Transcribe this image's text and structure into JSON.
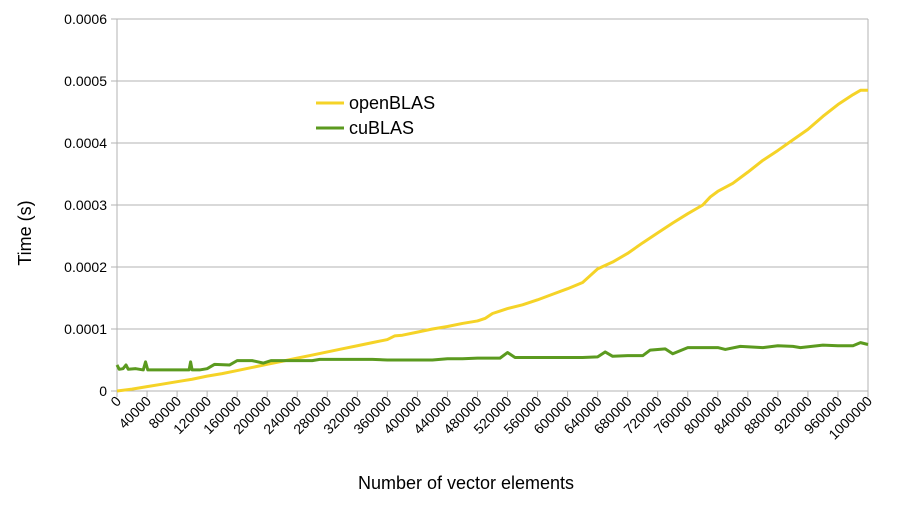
{
  "chart_data": {
    "type": "line",
    "title": "",
    "xlabel": "Number of vector elements",
    "ylabel": "Time (s)",
    "xlim": [
      0,
      1000000
    ],
    "ylim": [
      0,
      0.0006
    ],
    "x_ticks": [
      0,
      40000,
      80000,
      120000,
      160000,
      200000,
      240000,
      280000,
      320000,
      360000,
      400000,
      440000,
      480000,
      520000,
      560000,
      600000,
      640000,
      680000,
      720000,
      760000,
      800000,
      840000,
      880000,
      920000,
      960000,
      1000000
    ],
    "x_tick_labels": [
      "0",
      "40000",
      "80000",
      "120000",
      "160000",
      "200000",
      "240000",
      "280000",
      "320000",
      "360000",
      "400000",
      "440000",
      "480000",
      "520000",
      "560000",
      "600000",
      "640000",
      "680000",
      "720000",
      "760000",
      "800000",
      "840000",
      "880000",
      "920000",
      "960000",
      "1000000"
    ],
    "y_ticks": [
      0,
      0.0001,
      0.0002,
      0.0003,
      0.0004,
      0.0005,
      0.0006
    ],
    "y_tick_labels": [
      "0",
      "0.0001",
      "0.0002",
      "0.0003",
      "0.0004",
      "0.0005",
      "0.0006"
    ],
    "grid": "horizontal",
    "legend_position": "upper-left-inside",
    "series": [
      {
        "name": "openBLAS",
        "color": "#f5d327",
        "points": [
          [
            0,
            0.0
          ],
          [
            20000,
            3e-06
          ],
          [
            40000,
            7e-06
          ],
          [
            60000,
            1.1e-05
          ],
          [
            80000,
            1.5e-05
          ],
          [
            100000,
            1.9e-05
          ],
          [
            120000,
            2.4e-05
          ],
          [
            140000,
            2.8e-05
          ],
          [
            160000,
            3.3e-05
          ],
          [
            180000,
            3.8e-05
          ],
          [
            200000,
            4.3e-05
          ],
          [
            220000,
            4.8e-05
          ],
          [
            240000,
            5.3e-05
          ],
          [
            260000,
            5.8e-05
          ],
          [
            280000,
            6.3e-05
          ],
          [
            300000,
            6.8e-05
          ],
          [
            320000,
            7.3e-05
          ],
          [
            340000,
            7.8e-05
          ],
          [
            360000,
            8.3e-05
          ],
          [
            370000,
            8.9e-05
          ],
          [
            380000,
            9e-05
          ],
          [
            400000,
            9.5e-05
          ],
          [
            420000,
            0.0001
          ],
          [
            440000,
            0.000104
          ],
          [
            460000,
            0.000109
          ],
          [
            480000,
            0.000113
          ],
          [
            490000,
            0.000117
          ],
          [
            500000,
            0.000125
          ],
          [
            510000,
            0.000129
          ],
          [
            520000,
            0.000133
          ],
          [
            540000,
            0.000139
          ],
          [
            560000,
            0.000147
          ],
          [
            580000,
            0.000156
          ],
          [
            600000,
            0.000165
          ],
          [
            620000,
            0.000175
          ],
          [
            630000,
            0.000186
          ],
          [
            640000,
            0.000197
          ],
          [
            660000,
            0.000208
          ],
          [
            680000,
            0.000222
          ],
          [
            700000,
            0.000239
          ],
          [
            720000,
            0.000255
          ],
          [
            740000,
            0.000271
          ],
          [
            760000,
            0.000286
          ],
          [
            780000,
            0.0003
          ],
          [
            790000,
            0.000313
          ],
          [
            800000,
            0.000322
          ],
          [
            820000,
            0.000335
          ],
          [
            840000,
            0.000353
          ],
          [
            860000,
            0.000372
          ],
          [
            880000,
            0.000388
          ],
          [
            900000,
            0.000405
          ],
          [
            920000,
            0.000422
          ],
          [
            940000,
            0.000443
          ],
          [
            960000,
            0.000462
          ],
          [
            980000,
            0.000478
          ],
          [
            990000,
            0.000485
          ],
          [
            1000000,
            0.000485
          ]
        ]
      },
      {
        "name": "cuBLAS",
        "color": "#5b9a1f",
        "points": [
          [
            0,
            4.2e-05
          ],
          [
            3000,
            3.5e-05
          ],
          [
            8000,
            3.6e-05
          ],
          [
            12000,
            4.2e-05
          ],
          [
            15000,
            3.5e-05
          ],
          [
            25000,
            3.6e-05
          ],
          [
            35000,
            3.4e-05
          ],
          [
            38000,
            4.7e-05
          ],
          [
            41000,
            3.4e-05
          ],
          [
            60000,
            3.4e-05
          ],
          [
            80000,
            3.4e-05
          ],
          [
            96000,
            3.4e-05
          ],
          [
            98000,
            4.7e-05
          ],
          [
            100000,
            3.4e-05
          ],
          [
            110000,
            3.4e-05
          ],
          [
            120000,
            3.6e-05
          ],
          [
            130000,
            4.3e-05
          ],
          [
            150000,
            4.2e-05
          ],
          [
            160000,
            4.9e-05
          ],
          [
            180000,
            4.9e-05
          ],
          [
            195000,
            4.5e-05
          ],
          [
            205000,
            4.9e-05
          ],
          [
            220000,
            4.9e-05
          ],
          [
            240000,
            4.9e-05
          ],
          [
            260000,
            4.9e-05
          ],
          [
            270000,
            5.1e-05
          ],
          [
            300000,
            5.1e-05
          ],
          [
            320000,
            5.1e-05
          ],
          [
            340000,
            5.1e-05
          ],
          [
            360000,
            5e-05
          ],
          [
            380000,
            5e-05
          ],
          [
            400000,
            5e-05
          ],
          [
            420000,
            5e-05
          ],
          [
            440000,
            5.2e-05
          ],
          [
            460000,
            5.2e-05
          ],
          [
            480000,
            5.3e-05
          ],
          [
            500000,
            5.3e-05
          ],
          [
            510000,
            5.3e-05
          ],
          [
            520000,
            6.2e-05
          ],
          [
            530000,
            5.4e-05
          ],
          [
            560000,
            5.4e-05
          ],
          [
            600000,
            5.4e-05
          ],
          [
            620000,
            5.4e-05
          ],
          [
            640000,
            5.5e-05
          ],
          [
            650000,
            6.3e-05
          ],
          [
            660000,
            5.6e-05
          ],
          [
            680000,
            5.7e-05
          ],
          [
            700000,
            5.7e-05
          ],
          [
            710000,
            6.6e-05
          ],
          [
            730000,
            6.8e-05
          ],
          [
            740000,
            6e-05
          ],
          [
            760000,
            7e-05
          ],
          [
            780000,
            7e-05
          ],
          [
            800000,
            7e-05
          ],
          [
            810000,
            6.7e-05
          ],
          [
            830000,
            7.2e-05
          ],
          [
            860000,
            7e-05
          ],
          [
            880000,
            7.3e-05
          ],
          [
            900000,
            7.2e-05
          ],
          [
            910000,
            7e-05
          ],
          [
            940000,
            7.4e-05
          ],
          [
            960000,
            7.3e-05
          ],
          [
            980000,
            7.3e-05
          ],
          [
            990000,
            7.8e-05
          ],
          [
            1000000,
            7.5e-05
          ]
        ]
      }
    ]
  }
}
